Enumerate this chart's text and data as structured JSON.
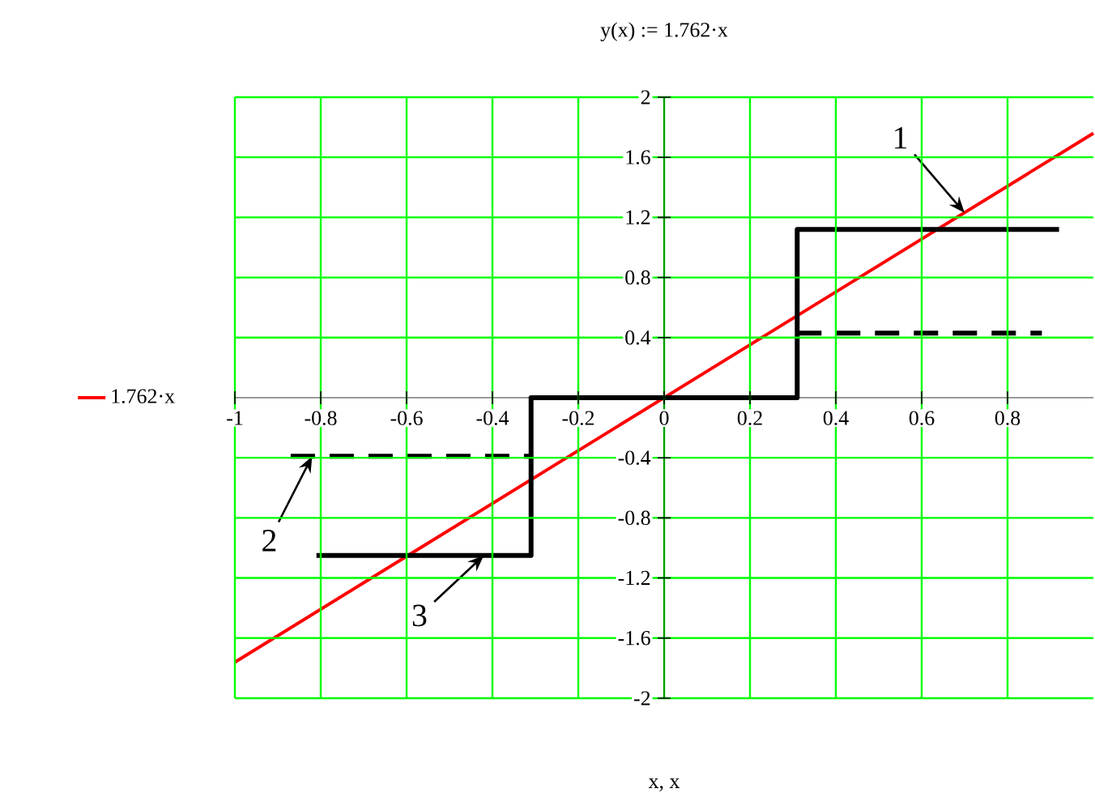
{
  "chart_data": {
    "type": "line",
    "title": "y(x) := 1.762·x",
    "xlabel": "x, x",
    "xlim": [
      -1,
      1
    ],
    "ylim": [
      -2,
      2
    ],
    "xticks": [
      -1,
      -0.8,
      -0.6,
      -0.4,
      -0.2,
      0,
      0.2,
      0.4,
      0.6,
      0.8
    ],
    "yticks": [
      -2,
      -1.6,
      -1.2,
      -0.8,
      -0.4,
      0.4,
      0.8,
      1.2,
      1.6,
      2
    ],
    "grid": true,
    "legend": "left",
    "series": [
      {
        "name": "1.762·x",
        "color": "#ff0000",
        "x": [
          -1,
          1
        ],
        "values": [
          -1.76,
          1.76
        ]
      },
      {
        "color": "#000000",
        "x": [
          -0.81,
          -0.31,
          -0.31,
          0.31,
          0.31,
          0.92
        ],
        "values": [
          -1.05,
          -1.05,
          0,
          0,
          1.12,
          1.12
        ]
      },
      {
        "color": "#000000",
        "line_style": "dashed",
        "x": [
          -0.87,
          -0.31,
          0,
          0.31,
          0.88
        ],
        "values": [
          -0.39,
          -0.39,
          null,
          0.43,
          0.43
        ]
      }
    ],
    "annotations": [
      {
        "text": "1",
        "x": 0.7,
        "y": 1.23
      },
      {
        "text": "2",
        "x": -0.82,
        "y": -0.39
      },
      {
        "text": "3",
        "x": -0.42,
        "y": -1.05
      }
    ]
  }
}
